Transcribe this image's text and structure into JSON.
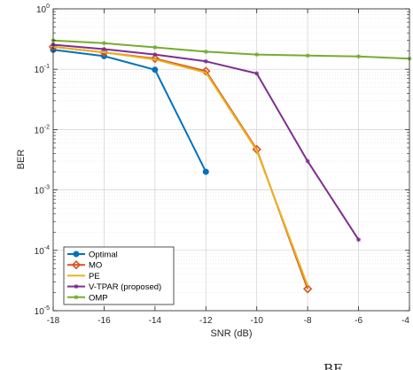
{
  "chart_data": {
    "type": "line",
    "title": "",
    "xlabel": "SNR (dB)",
    "ylabel": "BER",
    "xlim": [
      -18,
      -4
    ],
    "ylim": [
      1e-05,
      1
    ],
    "yscale": "log",
    "xticks": [
      -18,
      -16,
      -14,
      -12,
      -10,
      -8,
      -6,
      -4
    ],
    "xtick_labels": [
      "-18",
      "-16",
      "-14",
      "-12",
      "-10",
      "-8",
      "-6",
      "-4"
    ],
    "ytick_labels": [
      {
        "base": "10",
        "exp": "0",
        "value": 1
      },
      {
        "base": "10",
        "exp": "-1",
        "value": 0.1
      },
      {
        "base": "10",
        "exp": "-2",
        "value": 0.01
      },
      {
        "base": "10",
        "exp": "-3",
        "value": 0.001
      },
      {
        "base": "10",
        "exp": "-4",
        "value": 0.0001
      },
      {
        "base": "10",
        "exp": "-5",
        "value": 1e-05
      }
    ],
    "grid": true,
    "legend_position": "bottom-left",
    "series": [
      {
        "name": "Optimal",
        "color": "#0072BD",
        "marker": "circle",
        "x": [
          -18,
          -16,
          -14,
          -12
        ],
        "y": [
          0.21,
          0.165,
          0.098,
          0.002
        ]
      },
      {
        "name": "MO",
        "color": "#D95319",
        "marker": "diamond",
        "x": [
          -18,
          -16,
          -14,
          -12,
          -10,
          -8
        ],
        "y": [
          0.235,
          0.19,
          0.15,
          0.093,
          0.0047,
          2.3e-05
        ]
      },
      {
        "name": "PE",
        "color": "#EDB120",
        "marker": "none",
        "x": [
          -18,
          -16,
          -14,
          -12,
          -10,
          -8
        ],
        "y": [
          0.235,
          0.19,
          0.145,
          0.088,
          0.0045,
          2.6e-05
        ]
      },
      {
        "name": "V-TPAR (proposed)",
        "color": "#7E2F8E",
        "marker": "asterisk",
        "x": [
          -18,
          -16,
          -14,
          -12,
          -10,
          -8,
          -6
        ],
        "y": [
          0.255,
          0.215,
          0.175,
          0.135,
          0.085,
          0.003,
          0.00015
        ]
      },
      {
        "name": "OMP",
        "color": "#77AC30",
        "marker": "asterisk",
        "x": [
          -18,
          -16,
          -14,
          -12,
          -10,
          -8,
          -6,
          -4
        ],
        "y": [
          0.3,
          0.27,
          0.23,
          0.195,
          0.175,
          0.168,
          0.163,
          0.15
        ]
      }
    ]
  },
  "caption_fragment": "BE"
}
